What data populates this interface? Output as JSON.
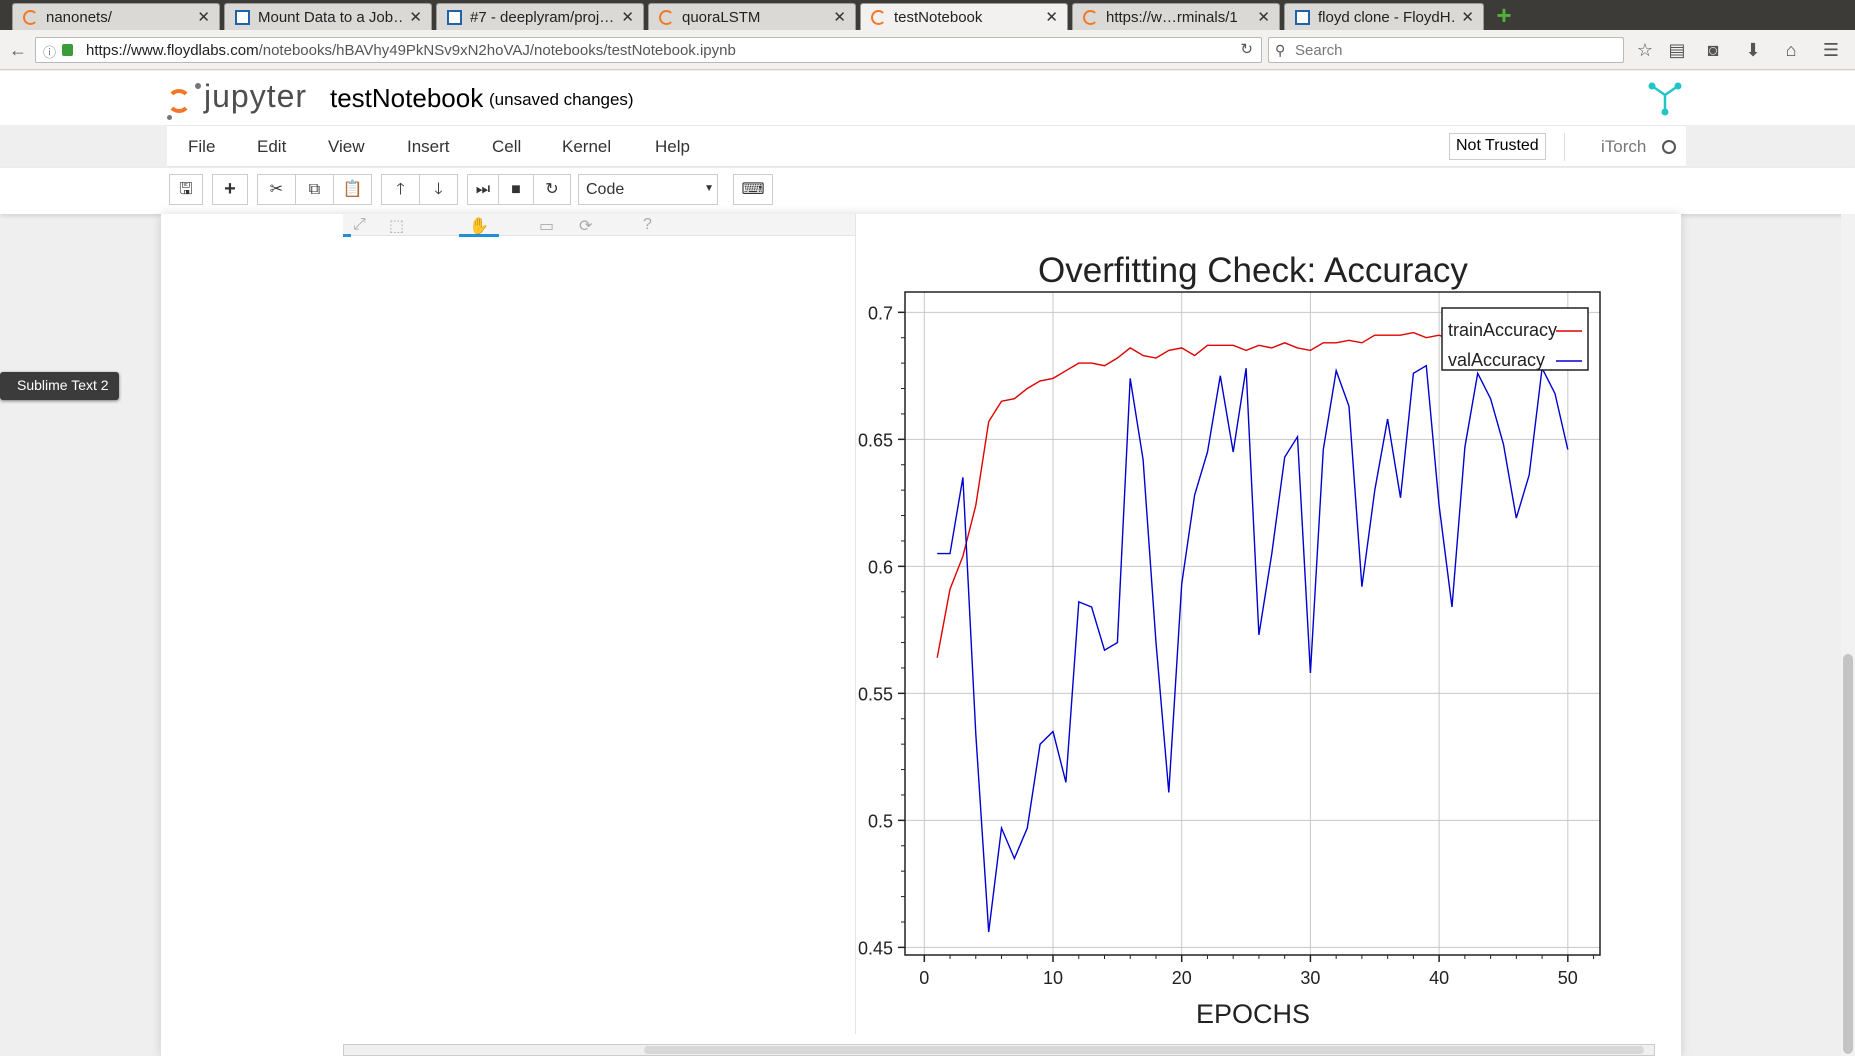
{
  "browser": {
    "tabs": [
      {
        "label": "nanonets/",
        "icon": "jupyter-icon"
      },
      {
        "label": "Mount Data to a Job…",
        "icon": "page-icon"
      },
      {
        "label": "#7 - deeplyram/proj…",
        "icon": "page-icon"
      },
      {
        "label": "quoraLSTM",
        "icon": "jupyter-icon"
      },
      {
        "label": "testNotebook",
        "icon": "jupyter-icon",
        "active": true
      },
      {
        "label": "https://w…rminals/1",
        "icon": "jupyter-icon"
      },
      {
        "label": "floyd clone - FloydH…",
        "icon": "page-icon"
      }
    ],
    "url_host": "https://www.floydlabs.com",
    "url_path": "/notebooks/hBAVhy49PkNSv9xN2hoVAJ/notebooks/testNotebook.ipynb",
    "search_placeholder": "Search"
  },
  "jupyter": {
    "logo_text": "jupyter",
    "notebook_name": "testNotebook",
    "save_status": "(unsaved changes)",
    "menu": [
      "File",
      "Edit",
      "View",
      "Insert",
      "Cell",
      "Kernel",
      "Help"
    ],
    "trust_status": "Not Trusted",
    "kernel_name": "iTorch",
    "cell_type": "Code"
  },
  "tooltip": {
    "text": "Sublime Text 2"
  },
  "chart_data": {
    "type": "line",
    "title": "Overfitting Check: Accuracy",
    "xlabel": "EPOCHS",
    "ylabel": "",
    "xlim": [
      -1.5,
      52.5
    ],
    "ylim": [
      0.447,
      0.708
    ],
    "x_ticks": [
      0,
      10,
      20,
      30,
      40,
      50
    ],
    "y_ticks": [
      0.45,
      0.5,
      0.55,
      0.6,
      0.65,
      0.7
    ],
    "grid": true,
    "legend_position": "top-right",
    "x": [
      1,
      2,
      3,
      4,
      5,
      6,
      7,
      8,
      9,
      10,
      11,
      12,
      13,
      14,
      15,
      16,
      17,
      18,
      19,
      20,
      21,
      22,
      23,
      24,
      25,
      26,
      27,
      28,
      29,
      30,
      31,
      32,
      33,
      34,
      35,
      36,
      37,
      38,
      39,
      40,
      41,
      42,
      43,
      44,
      45,
      46,
      47,
      48,
      49,
      50
    ],
    "series": [
      {
        "name": "trainAccuracy",
        "color": "#e00000",
        "values": [
          0.564,
          0.591,
          0.604,
          0.624,
          0.657,
          0.665,
          0.666,
          0.67,
          0.673,
          0.674,
          0.677,
          0.68,
          0.68,
          0.679,
          0.682,
          0.686,
          0.683,
          0.682,
          0.685,
          0.686,
          0.683,
          0.687,
          0.687,
          0.687,
          0.685,
          0.687,
          0.686,
          0.688,
          0.686,
          0.685,
          0.688,
          0.688,
          0.689,
          0.688,
          0.691,
          0.691,
          0.691,
          0.692,
          0.69,
          0.691,
          0.689,
          0.691,
          0.69,
          0.691,
          0.692,
          0.692,
          0.692,
          0.693,
          0.692,
          0.691
        ]
      },
      {
        "name": "valAccuracy",
        "color": "#0000d0",
        "values": [
          0.605,
          0.605,
          0.635,
          0.534,
          0.456,
          0.497,
          0.485,
          0.497,
          0.53,
          0.535,
          0.515,
          0.586,
          0.584,
          0.567,
          0.57,
          0.674,
          0.642,
          0.57,
          0.511,
          0.593,
          0.628,
          0.645,
          0.675,
          0.645,
          0.678,
          0.573,
          0.605,
          0.643,
          0.651,
          0.558,
          0.646,
          0.677,
          0.663,
          0.592,
          0.63,
          0.658,
          0.627,
          0.676,
          0.679,
          0.624,
          0.584,
          0.647,
          0.676,
          0.666,
          0.648,
          0.619,
          0.636,
          0.678,
          0.668,
          0.646
        ]
      }
    ]
  }
}
